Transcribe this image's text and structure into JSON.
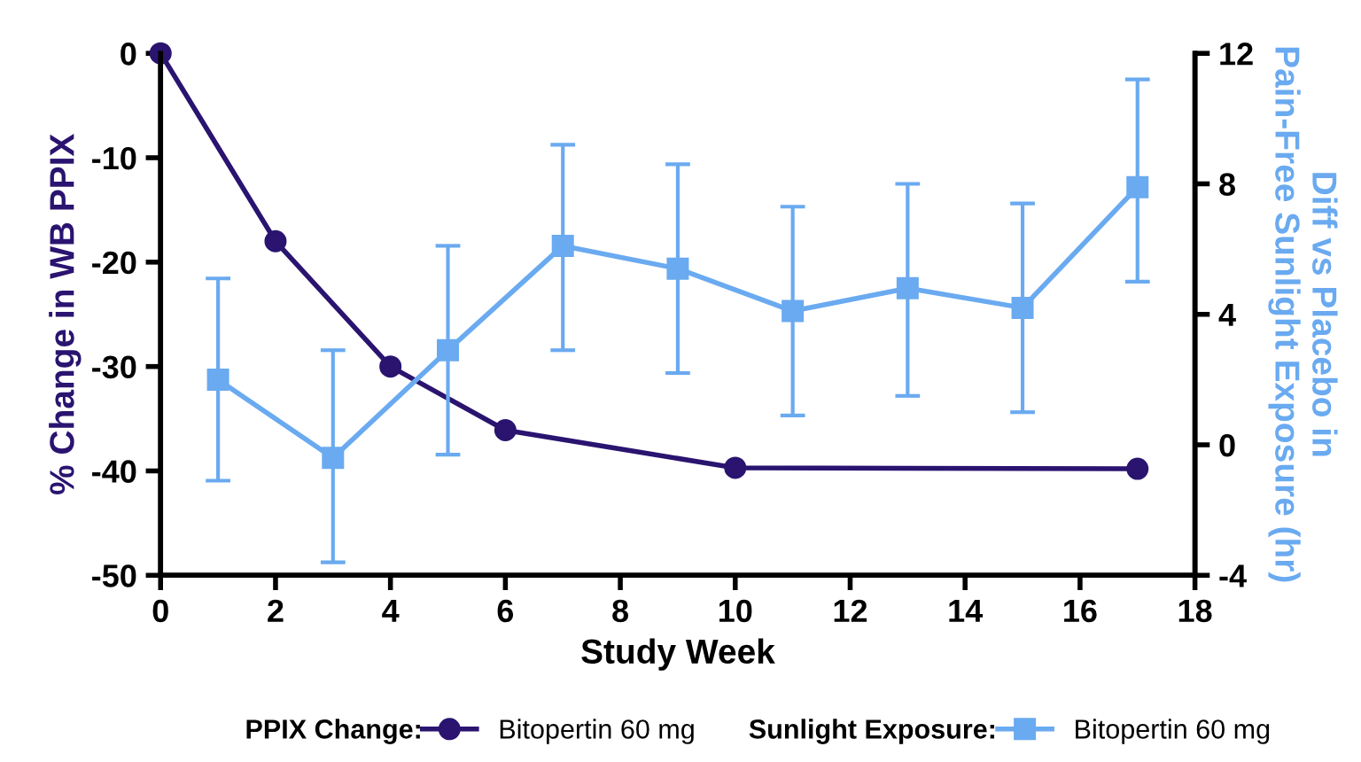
{
  "chart_data": {
    "type": "line",
    "xlabel": "Study Week",
    "ylabel": "% Change in WB PPIX",
    "y2label": "Diff vs Placebo in\nPain-Free Sunlight Exposure (hr)",
    "xlim": [
      0,
      18
    ],
    "xticks": [
      0,
      2,
      4,
      6,
      8,
      10,
      12,
      14,
      16,
      18
    ],
    "ylim": [
      -50,
      0
    ],
    "yticks": [
      -50,
      -40,
      -30,
      -20,
      -10,
      0
    ],
    "y2lim": [
      -4,
      12
    ],
    "y2ticks": [
      -4,
      0,
      4,
      8,
      12
    ],
    "grid": false,
    "legend": "bottom",
    "annotations": [
      "PPIX Change:",
      "Sunlight Exposure:"
    ],
    "series": [
      {
        "name": "Bitopertin 60 mg",
        "color": "#2a1470",
        "marker": "circle",
        "x": [
          0,
          2,
          4,
          6,
          10,
          17
        ],
        "values": [
          0,
          -18,
          -30,
          -36.1,
          -39.7,
          -39.8
        ]
      },
      {
        "name": "Bitopertin 60 mg",
        "color": "#6aaaf0",
        "marker": "square",
        "axis": "y2",
        "x": [
          1,
          3,
          5,
          7,
          9,
          11,
          13,
          15,
          17
        ],
        "values": [
          2.0,
          -0.4,
          2.9,
          6.1,
          5.4,
          4.1,
          4.8,
          4.2,
          7.9
        ],
        "errors": [
          [
            -1.1,
            5.1
          ],
          [
            -3.6,
            2.9
          ],
          [
            -0.3,
            6.1
          ],
          [
            2.9,
            9.2
          ],
          [
            2.2,
            8.6
          ],
          [
            0.9,
            7.3
          ],
          [
            1.5,
            8.0
          ],
          [
            1.0,
            7.4
          ],
          [
            5.0,
            11.2
          ]
        ]
      }
    ]
  }
}
